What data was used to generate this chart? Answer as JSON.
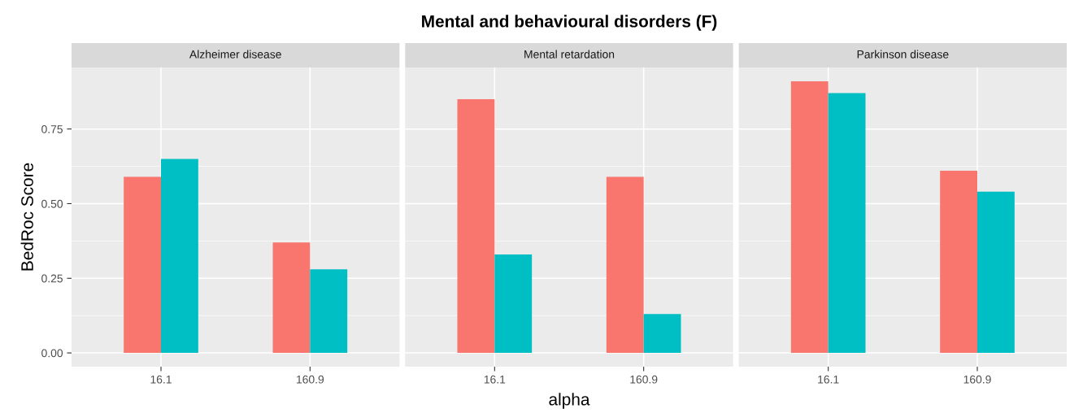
{
  "chart_data": [
    {
      "type": "bar",
      "title": "Alzheimer disease",
      "ylabel": "BedRoc Score",
      "annotations": [
        "Mental and behavioural disorders (F)"
      ],
      "categories": [
        "16.1",
        "160.9"
      ],
      "series": [
        {
          "color": "#f8766d",
          "values": [
            0.59,
            0.37
          ]
        },
        {
          "color": "#00bfc4",
          "values": [
            0.65,
            0.28
          ]
        }
      ],
      "ylim": [
        -0.046,
        0.956
      ],
      "yticks": [
        {
          "value": 0,
          "label": "0.00"
        },
        0.25,
        {
          "value": 0.5,
          "label": "0.50"
        },
        0.75
      ],
      "grid": true
    },
    {
      "type": "bar",
      "title": "Mental retardation",
      "xlabel": "alpha",
      "categories": [
        "16.1",
        "160.9"
      ],
      "series": [
        {
          "color": "#f8766d",
          "values": [
            0.85,
            0.59
          ]
        },
        {
          "color": "#00bfc4",
          "values": [
            0.33,
            0.13
          ]
        }
      ],
      "ylim": [
        -0.046,
        0.956
      ],
      "yticks": [
        {
          "value": 0,
          "label": null
        },
        {
          "value": 0.25,
          "label": null
        },
        {
          "value": 0.5,
          "label": null
        },
        {
          "value": 0.75,
          "label": null
        }
      ],
      "grid": true,
      "tick_labels": "x"
    },
    {
      "type": "bar",
      "title": "Parkinson disease",
      "categories": [
        "16.1",
        "160.9"
      ],
      "series": [
        {
          "color": "#f8766d",
          "values": [
            0.91,
            0.61
          ]
        },
        {
          "color": "#00bfc4",
          "values": [
            0.87,
            0.54
          ]
        }
      ],
      "ylim": [
        -0.046,
        0.956
      ],
      "yticks": [
        {
          "value": 0,
          "label": null
        },
        {
          "value": 0.25,
          "label": null
        },
        {
          "value": 0.5,
          "label": null
        },
        {
          "value": 0.75,
          "label": null
        }
      ],
      "grid": true,
      "tick_labels": "x"
    }
  ]
}
